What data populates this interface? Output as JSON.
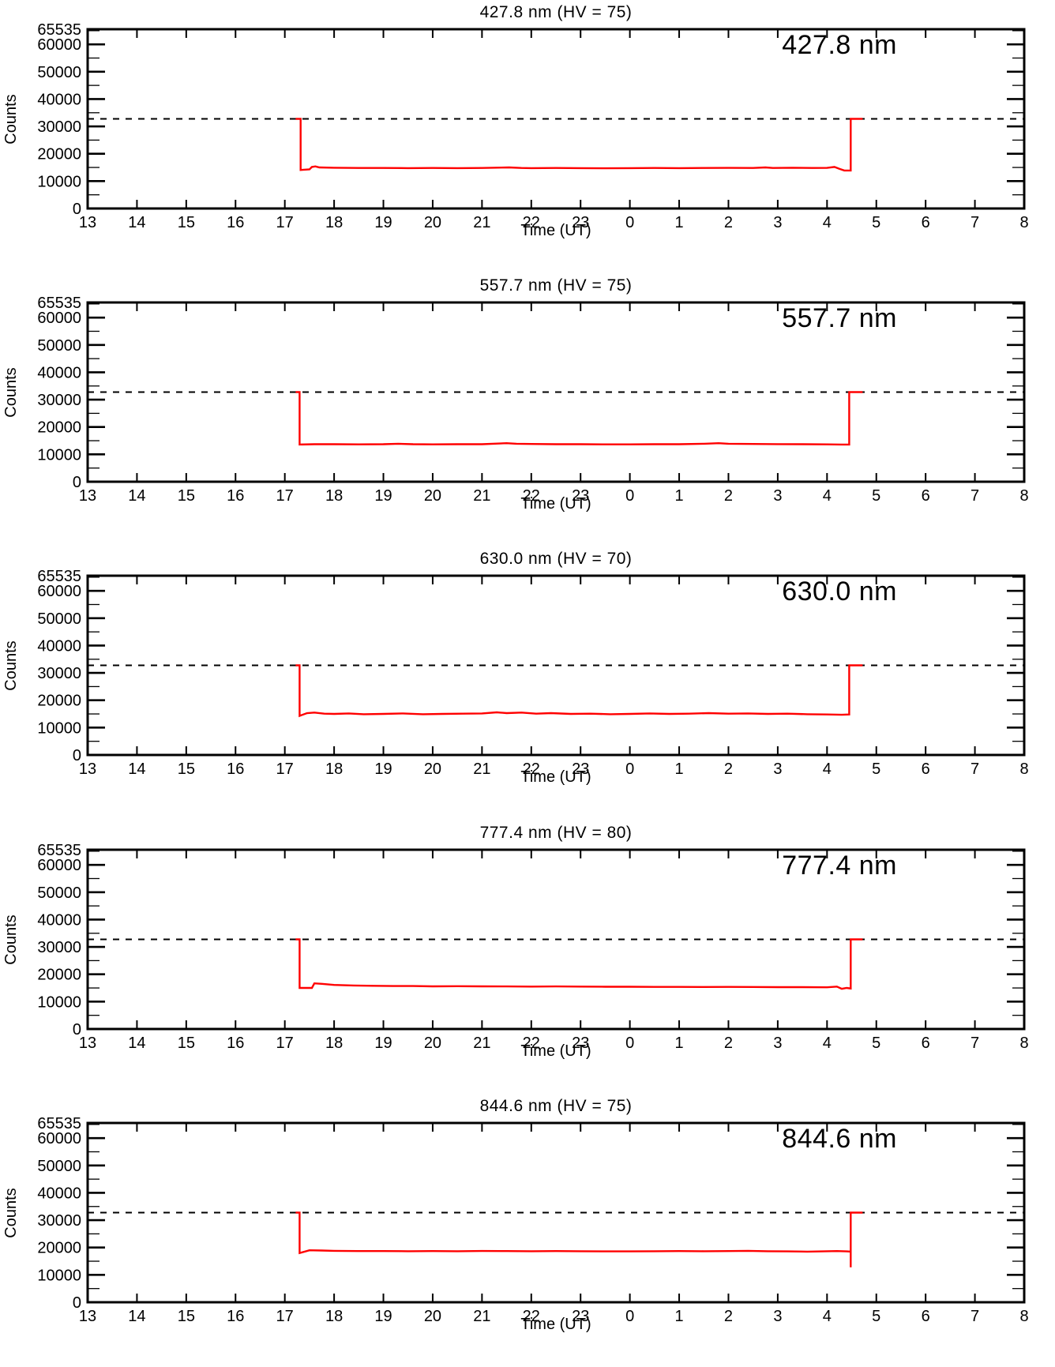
{
  "figure_background": "#ffffff",
  "line_color": "#ff0000",
  "axis_color": "#000000",
  "chart_data": [
    {
      "type": "line",
      "title": "427.8 nm (HV = 75)",
      "inplot_label": "427.8 nm",
      "xlabel": "Time (UT)",
      "ylabel": "Counts",
      "xlim": [
        13,
        32
      ],
      "ylim": [
        0,
        65535
      ],
      "x_tick_values": [
        13,
        14,
        15,
        16,
        17,
        18,
        19,
        20,
        21,
        22,
        23,
        24,
        25,
        26,
        27,
        28,
        29,
        30,
        31,
        32
      ],
      "x_tick_labels": [
        "13",
        "14",
        "15",
        "16",
        "17",
        "18",
        "19",
        "20",
        "21",
        "22",
        "23",
        "0",
        "1",
        "2",
        "3",
        "4",
        "5",
        "6",
        "7",
        "8"
      ],
      "y_tick_values": [
        0,
        10000,
        20000,
        30000,
        40000,
        50000,
        60000,
        65535
      ],
      "y_tick_labels": [
        "0",
        "10000",
        "20000",
        "30000",
        "40000",
        "50000",
        "60000",
        "65535"
      ],
      "y_minor_step": 5000,
      "grid": false,
      "threshold_dashed": 32768,
      "series": [
        {
          "name": "427.8 nm counts",
          "color": "#ff0000",
          "points": [
            [
              17.22,
              32768
            ],
            [
              17.32,
              32768
            ],
            [
              17.32,
              14100
            ],
            [
              17.5,
              14300
            ],
            [
              17.55,
              15200
            ],
            [
              17.62,
              15400
            ],
            [
              17.7,
              15000
            ],
            [
              18.0,
              14900
            ],
            [
              18.5,
              14800
            ],
            [
              19.0,
              14800
            ],
            [
              19.5,
              14750
            ],
            [
              20.0,
              14800
            ],
            [
              20.5,
              14750
            ],
            [
              21.0,
              14800
            ],
            [
              21.55,
              15000
            ],
            [
              21.8,
              14800
            ],
            [
              22.0,
              14750
            ],
            [
              22.5,
              14800
            ],
            [
              23.0,
              14750
            ],
            [
              23.5,
              14700
            ],
            [
              24.0,
              14750
            ],
            [
              24.5,
              14800
            ],
            [
              25.0,
              14750
            ],
            [
              25.5,
              14800
            ],
            [
              26.0,
              14850
            ],
            [
              26.5,
              14800
            ],
            [
              26.75,
              15000
            ],
            [
              26.9,
              14800
            ],
            [
              27.3,
              14900
            ],
            [
              27.7,
              14800
            ],
            [
              28.0,
              14850
            ],
            [
              28.15,
              15200
            ],
            [
              28.25,
              14500
            ],
            [
              28.35,
              13900
            ],
            [
              28.48,
              13900
            ],
            [
              28.48,
              32768
            ],
            [
              28.72,
              32768
            ]
          ]
        }
      ]
    },
    {
      "type": "line",
      "title": "557.7 nm (HV = 75)",
      "inplot_label": "557.7 nm",
      "xlabel": "Time (UT)",
      "ylabel": "Counts",
      "xlim": [
        13,
        32
      ],
      "ylim": [
        0,
        65535
      ],
      "x_tick_values": [
        13,
        14,
        15,
        16,
        17,
        18,
        19,
        20,
        21,
        22,
        23,
        24,
        25,
        26,
        27,
        28,
        29,
        30,
        31,
        32
      ],
      "x_tick_labels": [
        "13",
        "14",
        "15",
        "16",
        "17",
        "18",
        "19",
        "20",
        "21",
        "22",
        "23",
        "0",
        "1",
        "2",
        "3",
        "4",
        "5",
        "6",
        "7",
        "8"
      ],
      "y_tick_values": [
        0,
        10000,
        20000,
        30000,
        40000,
        50000,
        60000,
        65535
      ],
      "y_tick_labels": [
        "0",
        "10000",
        "20000",
        "30000",
        "40000",
        "50000",
        "60000",
        "65535"
      ],
      "y_minor_step": 5000,
      "grid": false,
      "threshold_dashed": 32768,
      "series": [
        {
          "name": "557.7 nm counts",
          "color": "#ff0000",
          "points": [
            [
              17.22,
              32768
            ],
            [
              17.3,
              32768
            ],
            [
              17.3,
              13600
            ],
            [
              17.6,
              13700
            ],
            [
              18.0,
              13700
            ],
            [
              18.5,
              13650
            ],
            [
              19.0,
              13700
            ],
            [
              19.3,
              13900
            ],
            [
              19.6,
              13700
            ],
            [
              20.0,
              13650
            ],
            [
              20.5,
              13700
            ],
            [
              21.0,
              13700
            ],
            [
              21.5,
              14100
            ],
            [
              21.7,
              13900
            ],
            [
              22.0,
              13800
            ],
            [
              22.5,
              13700
            ],
            [
              23.0,
              13700
            ],
            [
              23.5,
              13650
            ],
            [
              24.0,
              13650
            ],
            [
              24.5,
              13700
            ],
            [
              25.0,
              13700
            ],
            [
              25.5,
              13900
            ],
            [
              25.8,
              14100
            ],
            [
              26.0,
              13900
            ],
            [
              26.5,
              13800
            ],
            [
              27.0,
              13750
            ],
            [
              27.5,
              13700
            ],
            [
              28.0,
              13650
            ],
            [
              28.3,
              13600
            ],
            [
              28.45,
              13600
            ],
            [
              28.45,
              32768
            ],
            [
              28.72,
              32768
            ]
          ]
        }
      ]
    },
    {
      "type": "line",
      "title": "630.0 nm (HV = 70)",
      "inplot_label": "630.0 nm",
      "xlabel": "Time (UT)",
      "ylabel": "Counts",
      "xlim": [
        13,
        32
      ],
      "ylim": [
        0,
        65535
      ],
      "x_tick_values": [
        13,
        14,
        15,
        16,
        17,
        18,
        19,
        20,
        21,
        22,
        23,
        24,
        25,
        26,
        27,
        28,
        29,
        30,
        31,
        32
      ],
      "x_tick_labels": [
        "13",
        "14",
        "15",
        "16",
        "17",
        "18",
        "19",
        "20",
        "21",
        "22",
        "23",
        "0",
        "1",
        "2",
        "3",
        "4",
        "5",
        "6",
        "7",
        "8"
      ],
      "y_tick_values": [
        0,
        10000,
        20000,
        30000,
        40000,
        50000,
        60000,
        65535
      ],
      "y_tick_labels": [
        "0",
        "10000",
        "20000",
        "30000",
        "40000",
        "50000",
        "60000",
        "65535"
      ],
      "y_minor_step": 5000,
      "grid": false,
      "threshold_dashed": 32768,
      "series": [
        {
          "name": "630.0 nm counts",
          "color": "#ff0000",
          "points": [
            [
              17.22,
              32768
            ],
            [
              17.3,
              32768
            ],
            [
              17.3,
              14300
            ],
            [
              17.45,
              15300
            ],
            [
              17.6,
              15500
            ],
            [
              17.8,
              15100
            ],
            [
              18.0,
              15000
            ],
            [
              18.3,
              15200
            ],
            [
              18.6,
              14900
            ],
            [
              19.0,
              15000
            ],
            [
              19.4,
              15200
            ],
            [
              19.8,
              14900
            ],
            [
              20.2,
              15000
            ],
            [
              20.6,
              15100
            ],
            [
              21.0,
              15200
            ],
            [
              21.3,
              15600
            ],
            [
              21.5,
              15300
            ],
            [
              21.8,
              15500
            ],
            [
              22.1,
              15100
            ],
            [
              22.4,
              15300
            ],
            [
              22.8,
              15000
            ],
            [
              23.2,
              15100
            ],
            [
              23.6,
              14900
            ],
            [
              24.0,
              15000
            ],
            [
              24.4,
              15200
            ],
            [
              24.8,
              15000
            ],
            [
              25.2,
              15100
            ],
            [
              25.6,
              15300
            ],
            [
              26.0,
              15100
            ],
            [
              26.4,
              15200
            ],
            [
              26.8,
              15000
            ],
            [
              27.2,
              15100
            ],
            [
              27.6,
              14900
            ],
            [
              28.0,
              14800
            ],
            [
              28.3,
              14700
            ],
            [
              28.45,
              14800
            ],
            [
              28.45,
              32768
            ],
            [
              28.72,
              32768
            ]
          ]
        }
      ]
    },
    {
      "type": "line",
      "title": "777.4 nm (HV = 80)",
      "inplot_label": "777.4 nm",
      "xlabel": "Time (UT)",
      "ylabel": "Counts",
      "xlim": [
        13,
        32
      ],
      "ylim": [
        0,
        65535
      ],
      "x_tick_values": [
        13,
        14,
        15,
        16,
        17,
        18,
        19,
        20,
        21,
        22,
        23,
        24,
        25,
        26,
        27,
        28,
        29,
        30,
        31,
        32
      ],
      "x_tick_labels": [
        "13",
        "14",
        "15",
        "16",
        "17",
        "18",
        "19",
        "20",
        "21",
        "22",
        "23",
        "0",
        "1",
        "2",
        "3",
        "4",
        "5",
        "6",
        "7",
        "8"
      ],
      "y_tick_values": [
        0,
        10000,
        20000,
        30000,
        40000,
        50000,
        60000,
        65535
      ],
      "y_tick_labels": [
        "0",
        "10000",
        "20000",
        "30000",
        "40000",
        "50000",
        "60000",
        "65535"
      ],
      "y_minor_step": 5000,
      "grid": false,
      "threshold_dashed": 32768,
      "series": [
        {
          "name": "777.4 nm counts",
          "color": "#ff0000",
          "points": [
            [
              17.22,
              32768
            ],
            [
              17.3,
              32768
            ],
            [
              17.3,
              15000
            ],
            [
              17.55,
              15000
            ],
            [
              17.6,
              16700
            ],
            [
              17.75,
              16500
            ],
            [
              18.0,
              16100
            ],
            [
              18.4,
              15900
            ],
            [
              18.8,
              15800
            ],
            [
              19.2,
              15700
            ],
            [
              19.6,
              15700
            ],
            [
              20.0,
              15600
            ],
            [
              20.5,
              15650
            ],
            [
              21.0,
              15600
            ],
            [
              21.5,
              15550
            ],
            [
              22.0,
              15500
            ],
            [
              22.5,
              15550
            ],
            [
              23.0,
              15500
            ],
            [
              23.5,
              15450
            ],
            [
              24.0,
              15450
            ],
            [
              24.5,
              15400
            ],
            [
              25.0,
              15400
            ],
            [
              25.5,
              15350
            ],
            [
              26.0,
              15400
            ],
            [
              26.5,
              15350
            ],
            [
              27.0,
              15300
            ],
            [
              27.5,
              15300
            ],
            [
              28.0,
              15250
            ],
            [
              28.2,
              15500
            ],
            [
              28.3,
              14700
            ],
            [
              28.4,
              15000
            ],
            [
              28.48,
              14800
            ],
            [
              28.48,
              32768
            ],
            [
              28.72,
              32768
            ]
          ]
        }
      ]
    },
    {
      "type": "line",
      "title": "844.6 nm (HV = 75)",
      "inplot_label": "844.6 nm",
      "xlabel": "Time (UT)",
      "ylabel": "Counts",
      "xlim": [
        13,
        32
      ],
      "ylim": [
        0,
        65535
      ],
      "x_tick_values": [
        13,
        14,
        15,
        16,
        17,
        18,
        19,
        20,
        21,
        22,
        23,
        24,
        25,
        26,
        27,
        28,
        29,
        30,
        31,
        32
      ],
      "x_tick_labels": [
        "13",
        "14",
        "15",
        "16",
        "17",
        "18",
        "19",
        "20",
        "21",
        "22",
        "23",
        "0",
        "1",
        "2",
        "3",
        "4",
        "5",
        "6",
        "7",
        "8"
      ],
      "y_tick_values": [
        0,
        10000,
        20000,
        30000,
        40000,
        50000,
        60000,
        65535
      ],
      "y_tick_labels": [
        "0",
        "10000",
        "20000",
        "30000",
        "40000",
        "50000",
        "60000",
        "65535"
      ],
      "y_minor_step": 5000,
      "grid": false,
      "threshold_dashed": 32768,
      "series": [
        {
          "name": "844.6 nm counts",
          "color": "#ff0000",
          "points": [
            [
              17.22,
              32768
            ],
            [
              17.3,
              32768
            ],
            [
              17.3,
              18000
            ],
            [
              17.5,
              19000
            ],
            [
              17.75,
              18900
            ],
            [
              18.0,
              18800
            ],
            [
              18.5,
              18700
            ],
            [
              19.0,
              18700
            ],
            [
              19.5,
              18650
            ],
            [
              20.0,
              18700
            ],
            [
              20.5,
              18650
            ],
            [
              21.0,
              18750
            ],
            [
              21.5,
              18700
            ],
            [
              22.0,
              18650
            ],
            [
              22.5,
              18700
            ],
            [
              23.0,
              18650
            ],
            [
              23.5,
              18600
            ],
            [
              24.0,
              18600
            ],
            [
              24.5,
              18650
            ],
            [
              25.0,
              18700
            ],
            [
              25.5,
              18650
            ],
            [
              26.0,
              18700
            ],
            [
              26.4,
              18800
            ],
            [
              26.8,
              18650
            ],
            [
              27.2,
              18600
            ],
            [
              27.6,
              18500
            ],
            [
              27.9,
              18600
            ],
            [
              28.2,
              18700
            ],
            [
              28.4,
              18600
            ],
            [
              28.48,
              18500
            ],
            [
              28.48,
              12800
            ],
            [
              28.48,
              32768
            ],
            [
              28.72,
              32768
            ]
          ]
        }
      ]
    }
  ]
}
